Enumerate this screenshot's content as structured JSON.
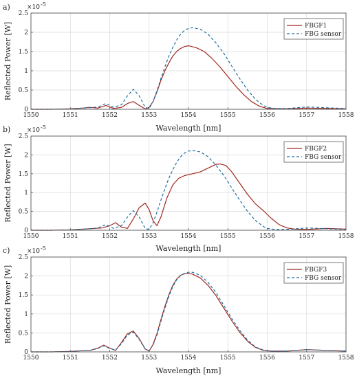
{
  "colors": {
    "fbgf": "#a0281e",
    "sensor": "#1e6fa0",
    "grid": "#d8d8d8",
    "frame": "#555555"
  },
  "chart_data": [
    {
      "type": "line",
      "panel_label": "a)",
      "xlabel": "Wavelength [nm]",
      "ylabel": "Reflected Power [W]",
      "y_exponent": "×10",
      "y_exponent_power": "-5",
      "xlim": [
        1550,
        1558
      ],
      "ylim": [
        0,
        2.5
      ],
      "xticks": [
        "1550",
        "1551",
        "1552",
        "1553",
        "1554",
        "1555",
        "1556",
        "1557",
        "1558"
      ],
      "yticks": [
        "0",
        "0.5",
        "1",
        "1.5",
        "2",
        "2.5"
      ],
      "grid": true,
      "legend_position": "top-right",
      "series": [
        {
          "name": "FBGF1",
          "style": "solid",
          "x": [
            1550,
            1550.5,
            1551,
            1551.3,
            1551.5,
            1551.7,
            1551.9,
            1552.1,
            1552.3,
            1552.45,
            1552.6,
            1552.75,
            1552.9,
            1553.0,
            1553.1,
            1553.2,
            1553.3,
            1553.4,
            1553.5,
            1553.6,
            1553.7,
            1553.8,
            1553.9,
            1554.0,
            1554.2,
            1554.4,
            1554.6,
            1554.8,
            1555.0,
            1555.2,
            1555.4,
            1555.6,
            1555.8,
            1556.0,
            1556.5,
            1557,
            1557.5,
            1558
          ],
          "y": [
            0,
            0,
            0.01,
            0.03,
            0.05,
            0.03,
            0.1,
            0.02,
            0.05,
            0.15,
            0.2,
            0.1,
            0.01,
            0.05,
            0.2,
            0.45,
            0.75,
            1.0,
            1.2,
            1.38,
            1.5,
            1.58,
            1.63,
            1.65,
            1.6,
            1.5,
            1.32,
            1.1,
            0.85,
            0.6,
            0.38,
            0.2,
            0.08,
            0.02,
            0.01,
            0.03,
            0.02,
            0.01
          ]
        },
        {
          "name": "FBG sensor",
          "style": "dashed",
          "x": [
            1550,
            1550.5,
            1551,
            1551.3,
            1551.5,
            1551.7,
            1551.9,
            1552.1,
            1552.3,
            1552.45,
            1552.6,
            1552.75,
            1552.9,
            1553.0,
            1553.1,
            1553.2,
            1553.3,
            1553.4,
            1553.5,
            1553.6,
            1553.7,
            1553.8,
            1553.9,
            1554.0,
            1554.1,
            1554.3,
            1554.5,
            1554.7,
            1554.9,
            1555.1,
            1555.3,
            1555.5,
            1555.7,
            1555.9,
            1556.0,
            1556.2,
            1556.5,
            1557,
            1557.5,
            1558
          ],
          "y": [
            0,
            0,
            0.01,
            0.03,
            0.04,
            0.06,
            0.15,
            0.05,
            0.12,
            0.35,
            0.52,
            0.35,
            0.05,
            0.02,
            0.2,
            0.48,
            0.8,
            1.1,
            1.38,
            1.6,
            1.8,
            1.95,
            2.05,
            2.1,
            2.12,
            2.08,
            1.95,
            1.72,
            1.45,
            1.12,
            0.8,
            0.5,
            0.26,
            0.1,
            0.05,
            0.02,
            0.02,
            0.06,
            0.04,
            0.02
          ]
        }
      ]
    },
    {
      "type": "line",
      "panel_label": "b)",
      "xlabel": "Wavelength [nm]",
      "ylabel": "Reflected Power [W]",
      "y_exponent": "×10",
      "y_exponent_power": "-5",
      "xlim": [
        1550,
        1558
      ],
      "ylim": [
        0,
        2.5
      ],
      "xticks": [
        "1550",
        "1551",
        "1552",
        "1553",
        "1554",
        "1555",
        "1556",
        "1557",
        "1558"
      ],
      "yticks": [
        "0",
        "0.5",
        "1",
        "1.5",
        "2",
        "2.5"
      ],
      "grid": true,
      "legend_position": "top-right",
      "series": [
        {
          "name": "FBGF2",
          "style": "solid",
          "x": [
            1550,
            1550.5,
            1551,
            1551.5,
            1551.8,
            1552.0,
            1552.15,
            1552.3,
            1552.45,
            1552.6,
            1552.75,
            1552.9,
            1553.0,
            1553.1,
            1553.2,
            1553.3,
            1553.45,
            1553.6,
            1553.75,
            1553.9,
            1554.1,
            1554.3,
            1554.5,
            1554.7,
            1554.8,
            1554.95,
            1555.1,
            1555.3,
            1555.5,
            1555.7,
            1555.9,
            1556.1,
            1556.3,
            1556.5,
            1556.7,
            1557.0,
            1557.5,
            1558
          ],
          "y": [
            0,
            0,
            0.01,
            0.04,
            0.06,
            0.12,
            0.2,
            0.08,
            0.05,
            0.3,
            0.6,
            0.72,
            0.55,
            0.25,
            0.12,
            0.35,
            0.85,
            1.2,
            1.38,
            1.45,
            1.5,
            1.55,
            1.65,
            1.75,
            1.76,
            1.72,
            1.55,
            1.25,
            0.95,
            0.7,
            0.52,
            0.32,
            0.15,
            0.06,
            0.03,
            0.02,
            0.05,
            0.03
          ]
        },
        {
          "name": "FBG sensor",
          "style": "dashed",
          "x": [
            1550,
            1550.5,
            1551,
            1551.3,
            1551.5,
            1551.7,
            1551.9,
            1552.1,
            1552.3,
            1552.45,
            1552.6,
            1552.75,
            1552.9,
            1553.0,
            1553.1,
            1553.2,
            1553.3,
            1553.4,
            1553.5,
            1553.6,
            1553.7,
            1553.8,
            1553.9,
            1554.0,
            1554.1,
            1554.3,
            1554.5,
            1554.7,
            1554.9,
            1555.1,
            1555.3,
            1555.5,
            1555.7,
            1555.9,
            1556.0,
            1556.2,
            1556.5,
            1557,
            1557.5,
            1558
          ],
          "y": [
            0,
            0,
            0.01,
            0.03,
            0.04,
            0.06,
            0.15,
            0.05,
            0.12,
            0.35,
            0.52,
            0.35,
            0.05,
            0.02,
            0.2,
            0.48,
            0.8,
            1.1,
            1.38,
            1.6,
            1.8,
            1.95,
            2.05,
            2.1,
            2.12,
            2.08,
            1.95,
            1.72,
            1.45,
            1.12,
            0.8,
            0.5,
            0.26,
            0.1,
            0.05,
            0.02,
            0.02,
            0.06,
            0.04,
            0.02
          ]
        }
      ]
    },
    {
      "type": "line",
      "panel_label": "c)",
      "xlabel": "Wavelength [nm]",
      "ylabel": "Reflected Power [W]",
      "y_exponent": "×10",
      "y_exponent_power": "-5",
      "xlim": [
        1550,
        1558
      ],
      "ylim": [
        0,
        2.5
      ],
      "xticks": [
        "1550",
        "1551",
        "1552",
        "1553",
        "1554",
        "1555",
        "1556",
        "1557",
        "1558"
      ],
      "yticks": [
        "0",
        "0.5",
        "1",
        "1.5",
        "2",
        "2.5"
      ],
      "grid": true,
      "legend_position": "top-right",
      "series": [
        {
          "name": "FBGF3",
          "style": "solid",
          "x": [
            1550,
            1550.5,
            1551,
            1551.3,
            1551.5,
            1551.7,
            1551.85,
            1552.0,
            1552.15,
            1552.3,
            1552.45,
            1552.6,
            1552.75,
            1552.9,
            1553.0,
            1553.1,
            1553.2,
            1553.3,
            1553.4,
            1553.5,
            1553.6,
            1553.7,
            1553.8,
            1553.9,
            1554.0,
            1554.1,
            1554.3,
            1554.5,
            1554.7,
            1554.9,
            1555.1,
            1555.3,
            1555.5,
            1555.7,
            1555.9,
            1556.1,
            1556.5,
            1557,
            1557.5,
            1558
          ],
          "y": [
            0,
            0,
            0.01,
            0.03,
            0.04,
            0.1,
            0.18,
            0.1,
            0.04,
            0.25,
            0.48,
            0.55,
            0.35,
            0.08,
            0.02,
            0.2,
            0.48,
            0.85,
            1.2,
            1.5,
            1.75,
            1.92,
            2.02,
            2.06,
            2.07,
            2.05,
            1.95,
            1.75,
            1.48,
            1.15,
            0.82,
            0.52,
            0.28,
            0.12,
            0.04,
            0.02,
            0.02,
            0.06,
            0.04,
            0.02
          ]
        },
        {
          "name": "FBG sensor",
          "style": "dashed",
          "x": [
            1550,
            1550.5,
            1551,
            1551.3,
            1551.5,
            1551.7,
            1551.85,
            1552.0,
            1552.15,
            1552.3,
            1552.45,
            1552.6,
            1552.75,
            1552.9,
            1553.0,
            1553.1,
            1553.2,
            1553.3,
            1553.4,
            1553.5,
            1553.6,
            1553.7,
            1553.8,
            1553.9,
            1554.0,
            1554.1,
            1554.3,
            1554.5,
            1554.7,
            1554.9,
            1555.1,
            1555.3,
            1555.5,
            1555.7,
            1555.9,
            1556.1,
            1556.5,
            1557,
            1557.5,
            1558
          ],
          "y": [
            0,
            0,
            0.01,
            0.03,
            0.04,
            0.09,
            0.16,
            0.09,
            0.05,
            0.22,
            0.45,
            0.52,
            0.33,
            0.07,
            0.03,
            0.18,
            0.44,
            0.8,
            1.15,
            1.46,
            1.72,
            1.9,
            2.01,
            2.07,
            2.1,
            2.1,
            2.02,
            1.83,
            1.56,
            1.22,
            0.88,
            0.57,
            0.31,
            0.13,
            0.05,
            0.02,
            0.02,
            0.06,
            0.04,
            0.02
          ]
        }
      ]
    }
  ]
}
